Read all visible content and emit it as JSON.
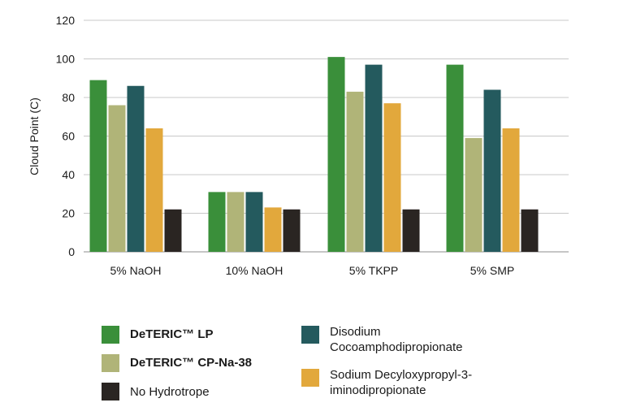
{
  "chart_data": {
    "type": "bar",
    "title": "",
    "xlabel": "",
    "ylabel": "Cloud Point (C)",
    "ylim": [
      0,
      120
    ],
    "yticks": [
      0,
      20,
      40,
      60,
      80,
      100,
      120
    ],
    "grid": true,
    "categories": [
      "5% NaOH",
      "10% NaOH",
      "5% TKPP",
      "5% SMP"
    ],
    "series": [
      {
        "name": "DeTERIC™ LP",
        "color": "#3a8f3a",
        "values": [
          89,
          31,
          101,
          97
        ]
      },
      {
        "name": "DeTERIC™ CP-Na-38",
        "color": "#b0b478",
        "values": [
          76,
          31,
          83,
          59
        ]
      },
      {
        "name": "Disodium Cocoamphodipropionate",
        "color": "#245a5e",
        "values": [
          86,
          31,
          97,
          84
        ]
      },
      {
        "name": "Sodium Decyloxypropyl-3-iminodipropionate",
        "color": "#e2a83c",
        "values": [
          64,
          23,
          77,
          64
        ]
      },
      {
        "name": "No Hydrotrope",
        "color": "#2a2522",
        "values": [
          22,
          22,
          22,
          22
        ]
      }
    ]
  },
  "legend": {
    "items": [
      {
        "label": "DeTERIC™ LP",
        "color": "#3a8f3a",
        "bold": true
      },
      {
        "label": "DeTERIC™ CP-Na-38",
        "color": "#b0b478",
        "bold": true
      },
      {
        "label": "No Hydrotrope",
        "color": "#2a2522",
        "bold": false
      },
      {
        "label_line1": "Disodium",
        "label_line2": "Cocoamphodipropionate",
        "color": "#245a5e"
      },
      {
        "label_line1": "Sodium Decyloxypropyl-3-",
        "label_line2": "iminodipropionate",
        "color": "#e2a83c"
      }
    ]
  }
}
